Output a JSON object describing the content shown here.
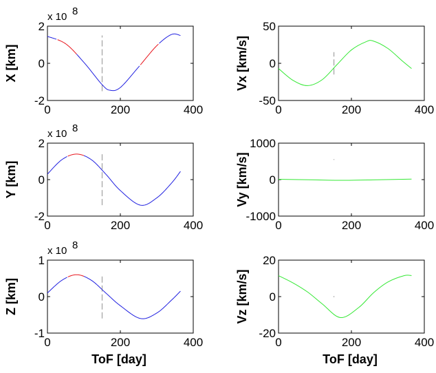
{
  "figure": {
    "colors": {
      "red": "#e8141c",
      "blue": "#1f1fe0",
      "green": "#33e833",
      "dash": "#a0a0a0",
      "background": "#ffffff"
    }
  },
  "chart_data": [
    {
      "type": "line",
      "name": "X",
      "ylabel": "X [km]",
      "xlabel": "",
      "multiplier_base": "x 10",
      "multiplier_exp": "8",
      "xlim": [
        0,
        400
      ],
      "ylim": [
        -2,
        2
      ],
      "xticks": [
        "0",
        "200",
        "400"
      ],
      "yticks": [
        "2",
        "0",
        "-2"
      ],
      "yticks_values": [
        2,
        0,
        -2
      ],
      "x": [
        0,
        50,
        100,
        150,
        172,
        200,
        250,
        300,
        340,
        365
      ],
      "y": [
        1.45,
        1.05,
        0.05,
        -1.15,
        -1.45,
        -1.3,
        -0.2,
        0.95,
        1.55,
        1.5
      ],
      "segments": [
        {
          "color": "blue",
          "from_x": 0,
          "to_x": 25
        },
        {
          "color": "red",
          "from_x": 25,
          "to_x": 80
        },
        {
          "color": "blue",
          "from_x": 80,
          "to_x": 255
        },
        {
          "color": "red",
          "from_x": 255,
          "to_x": 305
        },
        {
          "color": "blue",
          "from_x": 305,
          "to_x": 365
        }
      ],
      "dashed_marker": {
        "x": 150,
        "y_from": -1.5,
        "y_to": 1.5
      }
    },
    {
      "type": "line",
      "name": "Vx",
      "ylabel": "Vx [km/s]",
      "xlabel": "",
      "xlim": [
        0,
        400
      ],
      "ylim": [
        -50,
        50
      ],
      "xticks": [
        "0",
        "200",
        "400"
      ],
      "yticks": [
        "50",
        "0",
        "-50"
      ],
      "yticks_values": [
        50,
        0,
        -50
      ],
      "x": [
        0,
        40,
        80,
        120,
        160,
        200,
        240,
        260,
        300,
        340,
        365
      ],
      "y": [
        -7,
        -23,
        -30,
        -22,
        -2,
        18,
        29,
        30,
        20,
        3,
        -7
      ],
      "color": "green",
      "dashed_marker": {
        "x": 152,
        "y_from": -15,
        "y_to": 15
      }
    },
    {
      "type": "line",
      "name": "Y",
      "ylabel": "Y [km]",
      "xlabel": "",
      "multiplier_base": "x 10",
      "multiplier_exp": "8",
      "xlim": [
        0,
        400
      ],
      "ylim": [
        -2,
        2
      ],
      "xticks": [
        "0",
        "200",
        "400"
      ],
      "yticks": [
        "2",
        "0",
        "-2"
      ],
      "yticks_values": [
        2,
        0,
        -2
      ],
      "x": [
        0,
        40,
        80,
        120,
        160,
        200,
        255,
        300,
        340,
        365
      ],
      "y": [
        0.3,
        1.1,
        1.4,
        1.1,
        0.3,
        -0.6,
        -1.4,
        -1.0,
        -0.2,
        0.45
      ],
      "segments": [
        {
          "color": "blue",
          "from_x": 0,
          "to_x": 55
        },
        {
          "color": "red",
          "from_x": 55,
          "to_x": 100
        },
        {
          "color": "blue",
          "from_x": 100,
          "to_x": 365
        }
      ],
      "dashed_marker": {
        "x": 150,
        "y_from": -1.4,
        "y_to": 1.4
      }
    },
    {
      "type": "line",
      "name": "Vy",
      "ylabel": "Vy [km/s]",
      "xlabel": "",
      "xlim": [
        0,
        400
      ],
      "ylim": [
        -1000,
        1000
      ],
      "xticks": [
        "0",
        "200",
        "400"
      ],
      "yticks": [
        "1000",
        "0",
        "-1000"
      ],
      "yticks_values": [
        1000,
        0,
        -1000
      ],
      "x": [
        0,
        90,
        180,
        270,
        365
      ],
      "y": [
        10,
        -5,
        -20,
        -5,
        15
      ],
      "color": "green",
      "dashed_marker": {
        "x": 152,
        "y_from": 540,
        "y_to": 560
      }
    },
    {
      "type": "line",
      "name": "Z",
      "ylabel": "Z [km]",
      "xlabel": "ToF [day]",
      "multiplier_base": "x 10",
      "multiplier_exp": "8",
      "xlim": [
        0,
        400
      ],
      "ylim": [
        -1,
        1
      ],
      "xticks": [
        "0",
        "200",
        "400"
      ],
      "yticks": [
        "1",
        "0",
        "-1"
      ],
      "yticks_values": [
        1,
        0,
        -1
      ],
      "x": [
        0,
        40,
        80,
        120,
        160,
        200,
        255,
        300,
        340,
        365
      ],
      "y": [
        0.1,
        0.45,
        0.6,
        0.45,
        0.1,
        -0.25,
        -0.6,
        -0.45,
        -0.1,
        0.15
      ],
      "segments": [
        {
          "color": "blue",
          "from_x": 0,
          "to_x": 55
        },
        {
          "color": "red",
          "from_x": 55,
          "to_x": 100
        },
        {
          "color": "blue",
          "from_x": 100,
          "to_x": 365
        }
      ],
      "dashed_marker": {
        "x": 150,
        "y_from": -0.6,
        "y_to": 0.6
      }
    },
    {
      "type": "line",
      "name": "Vz",
      "ylabel": "Vz [km/s]",
      "xlabel": "ToF [day]",
      "xlim": [
        0,
        400
      ],
      "ylim": [
        -20,
        20
      ],
      "xticks": [
        "0",
        "200",
        "400"
      ],
      "yticks": [
        "20",
        "0",
        "-20"
      ],
      "yticks_values": [
        20,
        0,
        -20
      ],
      "x": [
        0,
        40,
        80,
        120,
        170,
        220,
        260,
        300,
        345,
        365
      ],
      "y": [
        11.5,
        7.5,
        2.5,
        -4,
        -11.5,
        -6,
        2,
        8,
        11.5,
        11.5
      ],
      "color": "green",
      "dashed_marker": {
        "x": 152,
        "y_from": -0.3,
        "y_to": 0.3
      }
    }
  ]
}
